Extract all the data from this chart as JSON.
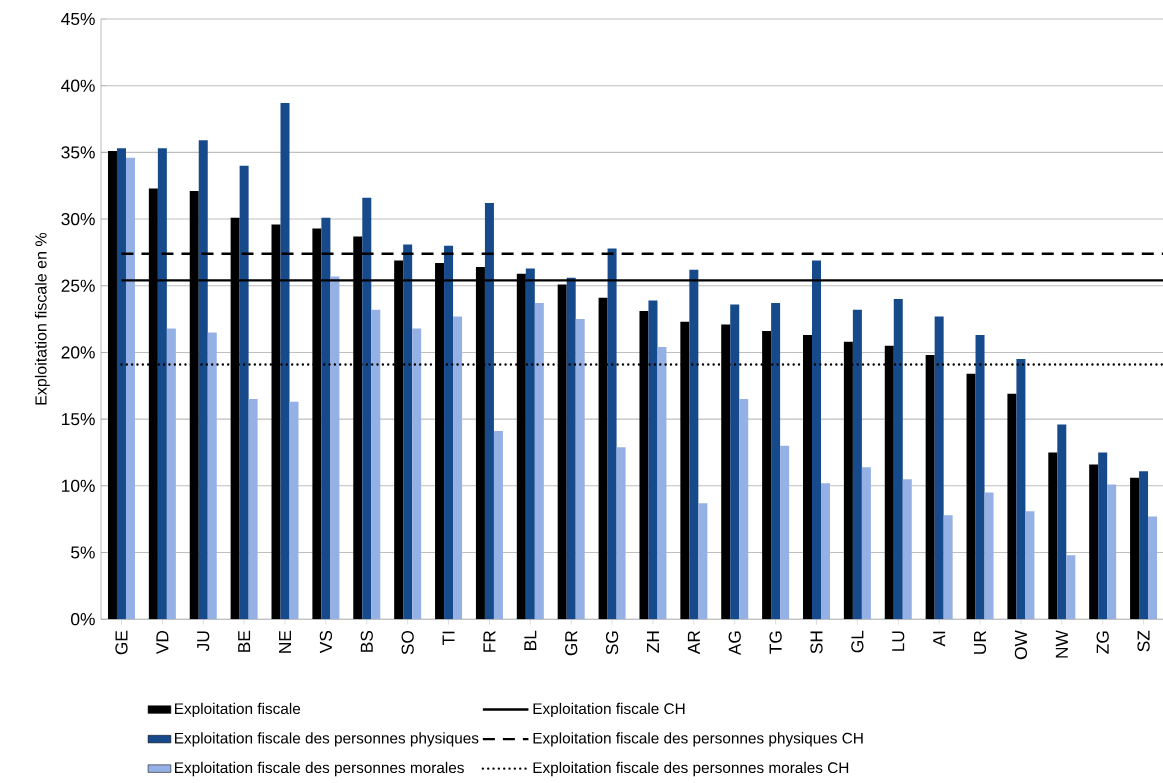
{
  "chart_data": {
    "type": "bar",
    "ylabel": "Exploitation fiscale en %",
    "categories": [
      "GE",
      "VD",
      "JU",
      "BE",
      "NE",
      "VS",
      "BS",
      "SO",
      "TI",
      "FR",
      "BL",
      "GR",
      "SG",
      "ZH",
      "AR",
      "AG",
      "TG",
      "SH",
      "GL",
      "LU",
      "AI",
      "UR",
      "OW",
      "NW",
      "ZG",
      "SZ"
    ],
    "series": [
      {
        "name": "Exploitation fiscale",
        "color": "#000000",
        "values": [
          35.1,
          32.3,
          32.1,
          30.1,
          29.6,
          29.3,
          28.7,
          26.9,
          26.7,
          26.4,
          25.9,
          25.1,
          24.1,
          23.1,
          22.3,
          22.1,
          21.6,
          21.3,
          20.8,
          20.5,
          19.8,
          18.4,
          16.9,
          12.5,
          11.6,
          10.6
        ]
      },
      {
        "name": "Exploitation fiscale des personnes physiques",
        "color": "#174a8b",
        "values": [
          35.3,
          35.3,
          35.9,
          34.0,
          38.7,
          30.1,
          31.6,
          28.1,
          28.0,
          31.2,
          26.3,
          25.6,
          27.8,
          23.9,
          26.2,
          23.6,
          23.7,
          26.9,
          23.2,
          24.0,
          22.7,
          21.3,
          19.5,
          14.6,
          12.5,
          11.1
        ]
      },
      {
        "name": "Exploitation fiscale des personnes morales",
        "color": "#95b0e4",
        "values": [
          34.6,
          21.8,
          21.5,
          16.5,
          16.3,
          25.7,
          23.2,
          21.8,
          22.7,
          14.1,
          23.7,
          22.5,
          12.9,
          20.4,
          8.7,
          16.5,
          13.0,
          10.2,
          11.4,
          10.5,
          7.8,
          9.5,
          8.1,
          4.8,
          10.1,
          7.7
        ]
      }
    ],
    "ylim": [
      0,
      45
    ],
    "yticks": [
      {
        "value": 0,
        "label": "0%"
      },
      {
        "value": 5,
        "label": "5%"
      },
      {
        "value": 10,
        "label": "10%"
      },
      {
        "value": 15,
        "label": "15%"
      },
      {
        "value": 20,
        "label": "20%"
      },
      {
        "value": 25,
        "label": "25%"
      },
      {
        "value": 30,
        "label": "30%"
      },
      {
        "value": 35,
        "label": "35%"
      },
      {
        "value": 40,
        "label": "40%"
      },
      {
        "value": 45,
        "label": "45%"
      }
    ],
    "ref_lines": [
      {
        "axis": "y",
        "value": 25.4,
        "label": "Exploitation fiscale CH",
        "line_style": "solid",
        "color": "#000000"
      },
      {
        "axis": "y",
        "value": 27.4,
        "label": "Exploitation fiscale des personnes physiques CH",
        "line_style": "dashed",
        "color": "#000000"
      },
      {
        "axis": "y",
        "value": 19.1,
        "label": "Exploitation fiscale des personnes morales CH",
        "line_style": "dotted",
        "color": "#000000"
      }
    ],
    "grid": "y",
    "legend": "bottom"
  }
}
